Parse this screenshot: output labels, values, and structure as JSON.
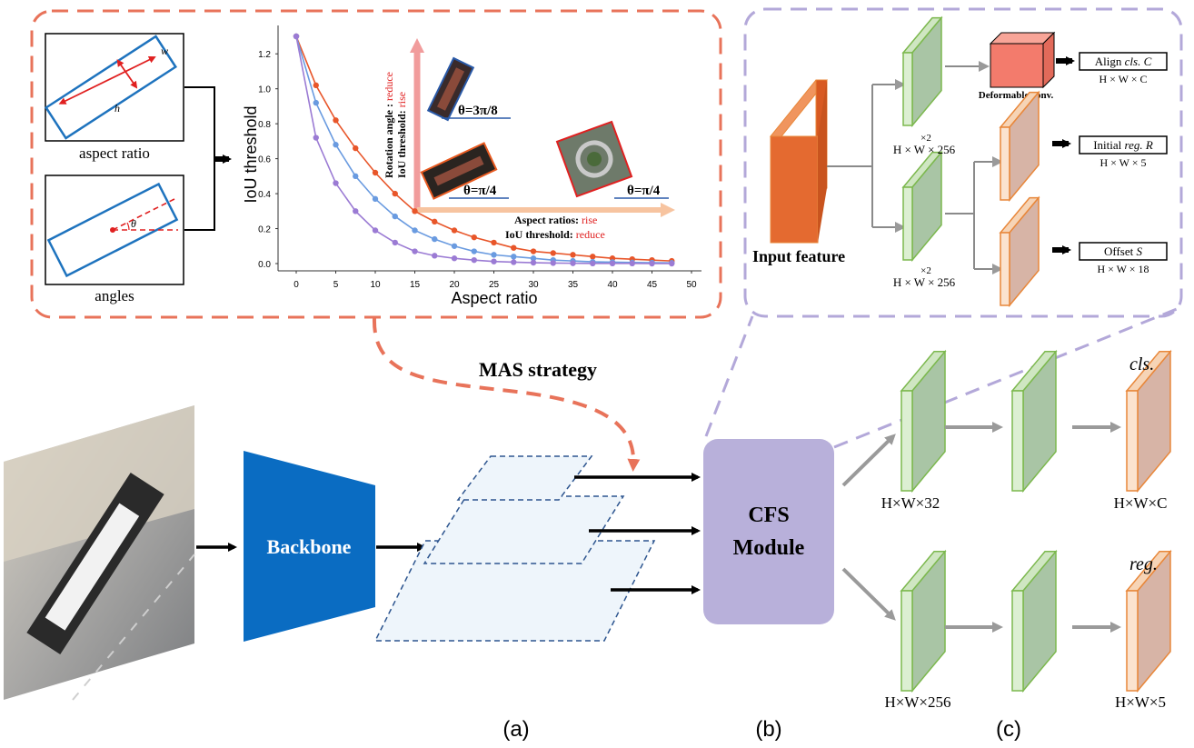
{
  "colors": {
    "red_dashed_border": "#E8735A",
    "purple_dashed_border": "#B3A8D9",
    "backbone_blue": "#0A6CC2",
    "cfs_purple": "#B8B0DA",
    "block_green_face": "#A9C5A5",
    "block_green_edge": "#7CB84E",
    "block_orange_face": "#D7B4A6",
    "block_orange_edge": "#E8873A",
    "input_orange": "#E46A30",
    "deform_red": "#F37B6C",
    "plane_fill": "#EEF5FB",
    "plane_edge": "#2D558F",
    "curve_red": "#E8562A",
    "curve_blue": "#6A9BE0",
    "curve_purple": "#9B7BD4"
  },
  "panel_a_top": {
    "aspect_ratio_label": "aspect ratio",
    "angles_label": "angles",
    "w_label": "w",
    "h_label": "h",
    "theta_label": "θ"
  },
  "chart_data": {
    "type": "line",
    "xlabel": "Aspect ratio",
    "ylabel": "IoU threshold",
    "xlim": [
      0,
      50
    ],
    "ylim": [
      0,
      1.3
    ],
    "x_ticks": [
      "0",
      "5",
      "10",
      "15",
      "20",
      "25",
      "30",
      "35",
      "40",
      "45",
      "50"
    ],
    "y_ticks": [
      "0.0",
      "0.2",
      "0.4",
      "0.6",
      "0.8",
      "1.0",
      "1.2"
    ],
    "x": [
      0,
      2.5,
      5,
      7.5,
      10,
      12.5,
      15,
      17.5,
      20,
      22.5,
      25,
      27.5,
      30,
      32.5,
      35,
      37.5,
      40,
      42.5,
      45,
      47.5
    ],
    "series": [
      {
        "color": "#E8562A",
        "values": [
          1.3,
          1.02,
          0.82,
          0.66,
          0.52,
          0.4,
          0.3,
          0.24,
          0.19,
          0.15,
          0.12,
          0.09,
          0.07,
          0.06,
          0.05,
          0.04,
          0.03,
          0.025,
          0.02,
          0.015
        ]
      },
      {
        "color": "#6A9BE0",
        "values": [
          1.3,
          0.92,
          0.68,
          0.5,
          0.37,
          0.27,
          0.19,
          0.14,
          0.1,
          0.07,
          0.05,
          0.04,
          0.03,
          0.02,
          0.015,
          0.01,
          0.008,
          0.006,
          0.005,
          0.004
        ]
      },
      {
        "color": "#9B7BD4",
        "values": [
          1.3,
          0.72,
          0.46,
          0.3,
          0.19,
          0.12,
          0.07,
          0.045,
          0.03,
          0.02,
          0.012,
          0.008,
          0.005,
          0.003,
          0.002,
          0.001,
          0.001,
          0.001,
          0.0,
          0.0
        ]
      }
    ],
    "annotations": {
      "rotation_line1_prefix": "Rotation angle : ",
      "rotation_line1_value": "reduce",
      "rotation_line2_prefix": "IoU threshold: ",
      "rotation_line2_value": "rise",
      "aspect_line1_prefix": "Aspect ratios: ",
      "aspect_line1_value": "rise",
      "aspect_line2_prefix": "IoU threshold: ",
      "aspect_line2_value": "reduce",
      "theta1": "θ=3π/8",
      "theta2": "θ=π/4",
      "theta3": "θ=π/4"
    }
  },
  "panel_b_top": {
    "align_label_prefix": "Align ",
    "align_label_italic": "cls. C",
    "align_dims": "H × W × C",
    "deform_label": "Deformable conv.",
    "initial_label_prefix": "Initial ",
    "initial_label_italic": "reg. R",
    "initial_dims": "H × W × 5",
    "offset_label_prefix": "Offset ",
    "offset_label_italic": "S",
    "offset_dims": "H × W × 18",
    "x2_top": "×2",
    "x2_bottom": "×2",
    "hw256_top": "H × W × 256",
    "hw256_bottom": "H × W × 256",
    "input_feature": "Input feature"
  },
  "bottom": {
    "mas_strategy": "MAS strategy",
    "backbone": "Backbone",
    "cfs_line1": "CFS",
    "cfs_line2": "Module",
    "cls_label": "cls.",
    "reg_label": "reg.",
    "hw32": "H×W×32",
    "hwc": "H×W×C",
    "hw256": "H×W×256",
    "hw5": "H×W×5",
    "label_a": "(a)",
    "label_b": "(b)",
    "label_c": "(c)"
  }
}
